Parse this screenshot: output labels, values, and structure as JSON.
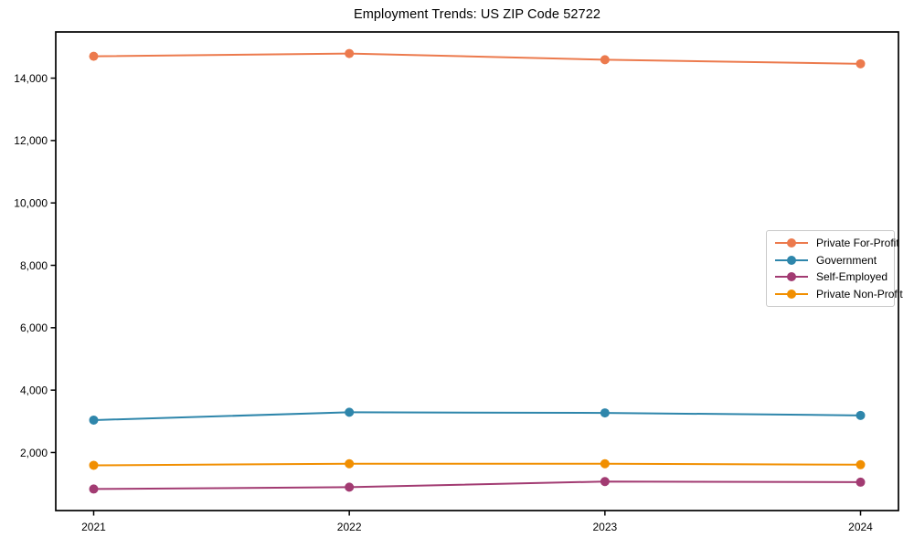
{
  "chart_data": {
    "type": "line",
    "title": "Employment Trends: US ZIP Code 52722",
    "categories": [
      "2021",
      "2022",
      "2023",
      "2024"
    ],
    "series": [
      {
        "name": "Private For-Profit",
        "color": "#EC7A4D",
        "values": [
          14700,
          14790,
          14590,
          14460
        ]
      },
      {
        "name": "Government",
        "color": "#2E86AB",
        "values": [
          3040,
          3290,
          3270,
          3190
        ]
      },
      {
        "name": "Self-Employed",
        "color": "#A23B72",
        "values": [
          830,
          890,
          1070,
          1050
        ]
      },
      {
        "name": "Private Non-Profit",
        "color": "#F18F01",
        "values": [
          1590,
          1640,
          1640,
          1610
        ]
      }
    ],
    "xlabel": "",
    "ylabel": "",
    "ylim": [
      140,
      15480
    ],
    "yticks": [
      2000,
      4000,
      6000,
      8000,
      10000,
      12000,
      14000
    ],
    "ytick_labels": [
      "2,000",
      "4,000",
      "6,000",
      "8,000",
      "10,000",
      "12,000",
      "14,000"
    ],
    "grid": false,
    "legend_position": "center right",
    "marker": "circle",
    "line_width": 2,
    "marker_radius": 5,
    "axis_color": "#000000",
    "background_color": "#ffffff"
  }
}
